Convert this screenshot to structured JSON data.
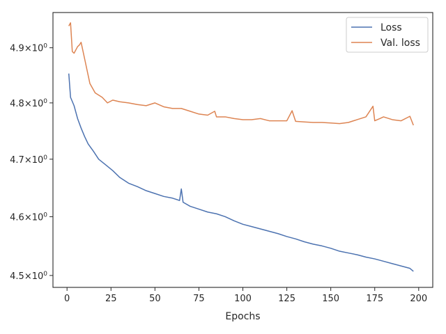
{
  "chart_data": {
    "type": "line",
    "title": "",
    "xlabel": "Epochs",
    "ylabel": "",
    "yscale": "log",
    "xlim": [
      -8,
      208
    ],
    "ylim": [
      4.48,
      4.965
    ],
    "grid": false,
    "legend_position": "top-right",
    "x_ticks": [
      0,
      25,
      50,
      75,
      100,
      125,
      150,
      175,
      200
    ],
    "x_tick_labels": [
      "0",
      "25",
      "50",
      "75",
      "100",
      "125",
      "150",
      "175",
      "200"
    ],
    "y_ticks": [
      4.5,
      4.6,
      4.7,
      4.8,
      4.9
    ],
    "y_tick_mantissas": [
      "4.5",
      "4.6",
      "4.7",
      "4.8",
      "4.9"
    ],
    "y_tick_suffix": "×10",
    "y_tick_exponent": "0",
    "series": [
      {
        "name": "Loss",
        "color": "#4c72b0",
        "x": [
          1,
          2,
          4,
          6,
          8,
          10,
          12,
          15,
          18,
          22,
          26,
          30,
          35,
          40,
          45,
          50,
          55,
          60,
          64,
          65,
          66,
          70,
          75,
          80,
          85,
          90,
          95,
          100,
          105,
          110,
          115,
          120,
          125,
          130,
          135,
          140,
          145,
          150,
          155,
          160,
          165,
          170,
          175,
          180,
          185,
          190,
          195,
          197
        ],
        "y": [
          4.853,
          4.81,
          4.795,
          4.772,
          4.755,
          4.74,
          4.727,
          4.714,
          4.7,
          4.69,
          4.68,
          4.668,
          4.658,
          4.652,
          4.645,
          4.64,
          4.635,
          4.632,
          4.628,
          4.648,
          4.625,
          4.618,
          4.613,
          4.608,
          4.605,
          4.6,
          4.593,
          4.587,
          4.583,
          4.579,
          4.575,
          4.571,
          4.566,
          4.562,
          4.557,
          4.553,
          4.55,
          4.546,
          4.541,
          4.538,
          4.535,
          4.531,
          4.528,
          4.524,
          4.52,
          4.516,
          4.512,
          4.507
        ]
      },
      {
        "name": "Val. loss",
        "color": "#dd8452",
        "x": [
          1,
          2,
          3,
          4,
          6,
          7,
          8,
          10,
          13,
          16,
          20,
          23,
          26,
          30,
          35,
          40,
          45,
          50,
          55,
          60,
          65,
          70,
          75,
          80,
          84,
          85,
          90,
          95,
          100,
          105,
          110,
          115,
          120,
          125,
          128,
          130,
          135,
          140,
          145,
          150,
          155,
          160,
          165,
          170,
          174,
          175,
          178,
          180,
          185,
          190,
          195,
          197
        ],
        "y": [
          4.94,
          4.946,
          4.893,
          4.89,
          4.902,
          4.905,
          4.91,
          4.88,
          4.835,
          4.818,
          4.81,
          4.8,
          4.805,
          4.802,
          4.8,
          4.797,
          4.795,
          4.8,
          4.793,
          4.79,
          4.79,
          4.785,
          4.78,
          4.778,
          4.785,
          4.775,
          4.775,
          4.772,
          4.77,
          4.77,
          4.772,
          4.768,
          4.768,
          4.768,
          4.786,
          4.767,
          4.766,
          4.765,
          4.765,
          4.764,
          4.763,
          4.765,
          4.77,
          4.775,
          4.794,
          4.768,
          4.772,
          4.775,
          4.77,
          4.768,
          4.776,
          4.76
        ]
      }
    ]
  }
}
